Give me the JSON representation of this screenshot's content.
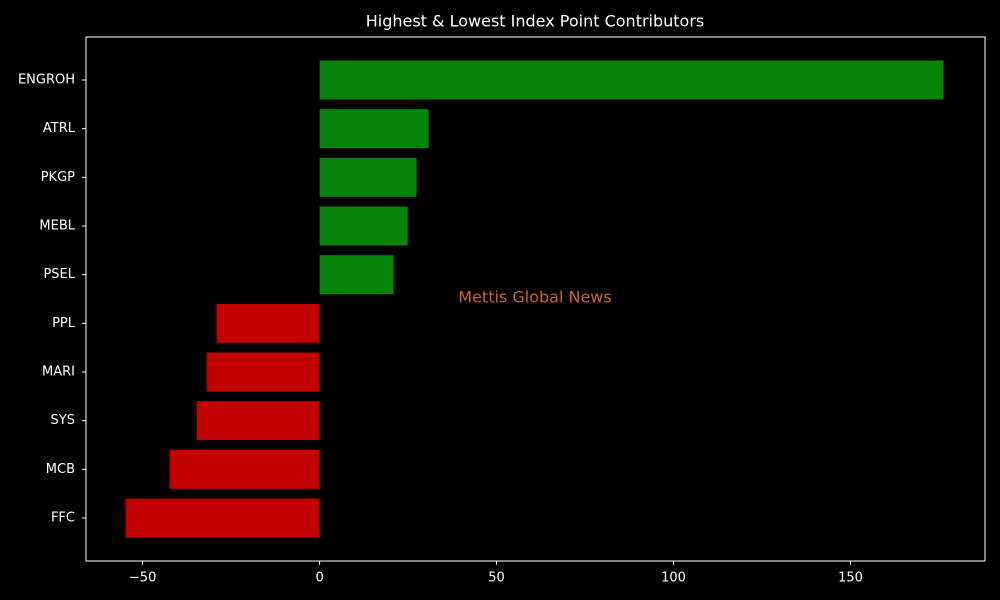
{
  "chart_data": {
    "type": "barh",
    "title": "Highest & Lowest Index Point Contributors",
    "annotation": "Mettis Global News",
    "categories": [
      "ENGROH",
      "ATRL",
      "PKGP",
      "MEBL",
      "PSEL",
      "PPL",
      "MARI",
      "SYS",
      "MCB",
      "FFC"
    ],
    "values": [
      176.3,
      30.8,
      27.4,
      24.9,
      20.9,
      -29.1,
      -31.9,
      -34.7,
      -42.4,
      -54.8
    ],
    "colors": [
      "#088408",
      "#088408",
      "#088408",
      "#088408",
      "#088408",
      "#c20000",
      "#c20000",
      "#c20000",
      "#c20000",
      "#c20000"
    ],
    "xlim": [
      -66,
      188
    ],
    "xticks": [
      {
        "value": -50,
        "label": "−50"
      },
      0,
      50,
      100,
      150
    ]
  }
}
